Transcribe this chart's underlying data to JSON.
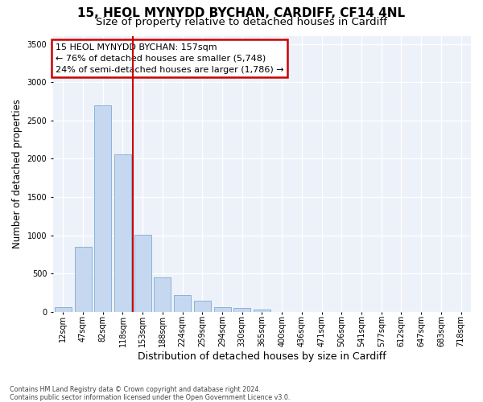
{
  "title1": "15, HEOL MYNYDD BYCHAN, CARDIFF, CF14 4NL",
  "title2": "Size of property relative to detached houses in Cardiff",
  "xlabel": "Distribution of detached houses by size in Cardiff",
  "ylabel": "Number of detached properties",
  "categories": [
    "12sqm",
    "47sqm",
    "82sqm",
    "118sqm",
    "153sqm",
    "188sqm",
    "224sqm",
    "259sqm",
    "294sqm",
    "330sqm",
    "365sqm",
    "400sqm",
    "436sqm",
    "471sqm",
    "506sqm",
    "541sqm",
    "577sqm",
    "612sqm",
    "647sqm",
    "683sqm",
    "718sqm"
  ],
  "values": [
    60,
    850,
    2700,
    2060,
    1010,
    450,
    220,
    145,
    60,
    50,
    30,
    0,
    0,
    0,
    0,
    0,
    0,
    0,
    0,
    0,
    0
  ],
  "bar_color": "#c5d8f0",
  "bar_edge_color": "#6fa0c8",
  "vline_color": "#cc0000",
  "vline_x": 3.5,
  "annotation_line1": "15 HEOL MYNYDD BYCHAN: 157sqm",
  "annotation_line2": "← 76% of detached houses are smaller (5,748)",
  "annotation_line3": "24% of semi-detached houses are larger (1,786) →",
  "annotation_box_edgecolor": "#cc0000",
  "bg_color": "#edf1fa",
  "grid_color": "#ffffff",
  "ylim": [
    0,
    3600
  ],
  "yticks": [
    0,
    500,
    1000,
    1500,
    2000,
    2500,
    3000,
    3500
  ],
  "footnote": "Contains HM Land Registry data © Crown copyright and database right 2024.\nContains public sector information licensed under the Open Government Licence v3.0.",
  "title1_fontsize": 11,
  "title2_fontsize": 9.5,
  "xlabel_fontsize": 9,
  "ylabel_fontsize": 8.5,
  "tick_fontsize": 7,
  "annot_fontsize": 8,
  "footnote_fontsize": 5.8
}
